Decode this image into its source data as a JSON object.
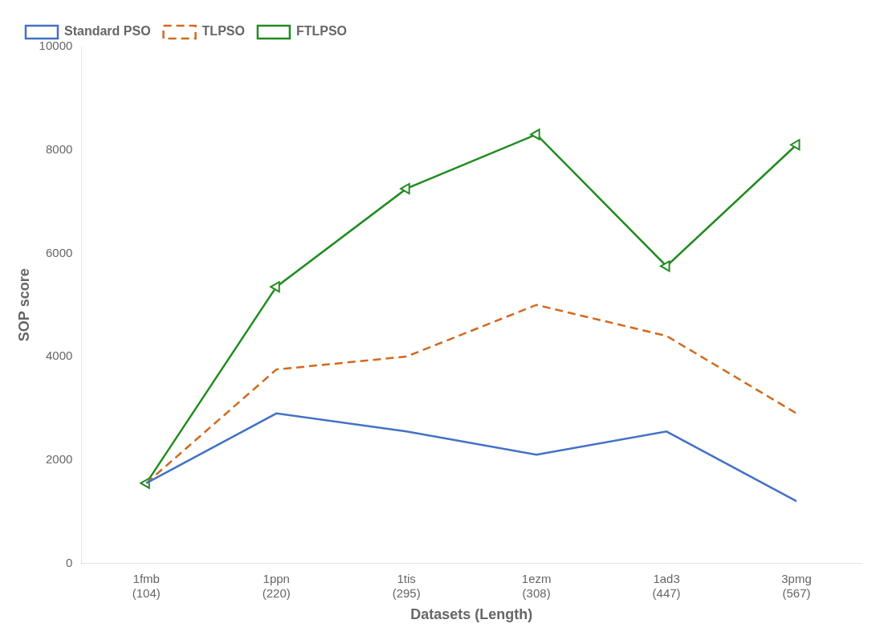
{
  "chart_data": {
    "type": "line",
    "categories": [
      "1fmb\n(104)",
      "1ppn\n(220)",
      "1tis\n(295)",
      "1ezm\n(308)",
      "1ad3\n(447)",
      "3pmg\n(567)"
    ],
    "series": [
      {
        "name": "Standard PSO",
        "color": "#4472C4",
        "line_style": "solid",
        "marker": "none",
        "values": [
          1550,
          2900,
          2550,
          2100,
          2550,
          1200
        ]
      },
      {
        "name": "TLPSO",
        "color": "#D2691E",
        "line_style": "dashed",
        "marker": "none",
        "values": [
          1550,
          3750,
          4000,
          5000,
          4400,
          2900
        ]
      },
      {
        "name": "FTLPSO",
        "color": "#228B22",
        "line_style": "solid",
        "marker": "triangle-left",
        "values": [
          1550,
          5350,
          7250,
          8300,
          5750,
          8100
        ]
      }
    ],
    "xlabel": "Datasets (Length)",
    "ylabel": "SOP score",
    "ylim": [
      0,
      10000
    ],
    "yticks": [
      0,
      2000,
      4000,
      6000,
      8000,
      10000
    ],
    "grid": false,
    "legend": "upper left"
  }
}
